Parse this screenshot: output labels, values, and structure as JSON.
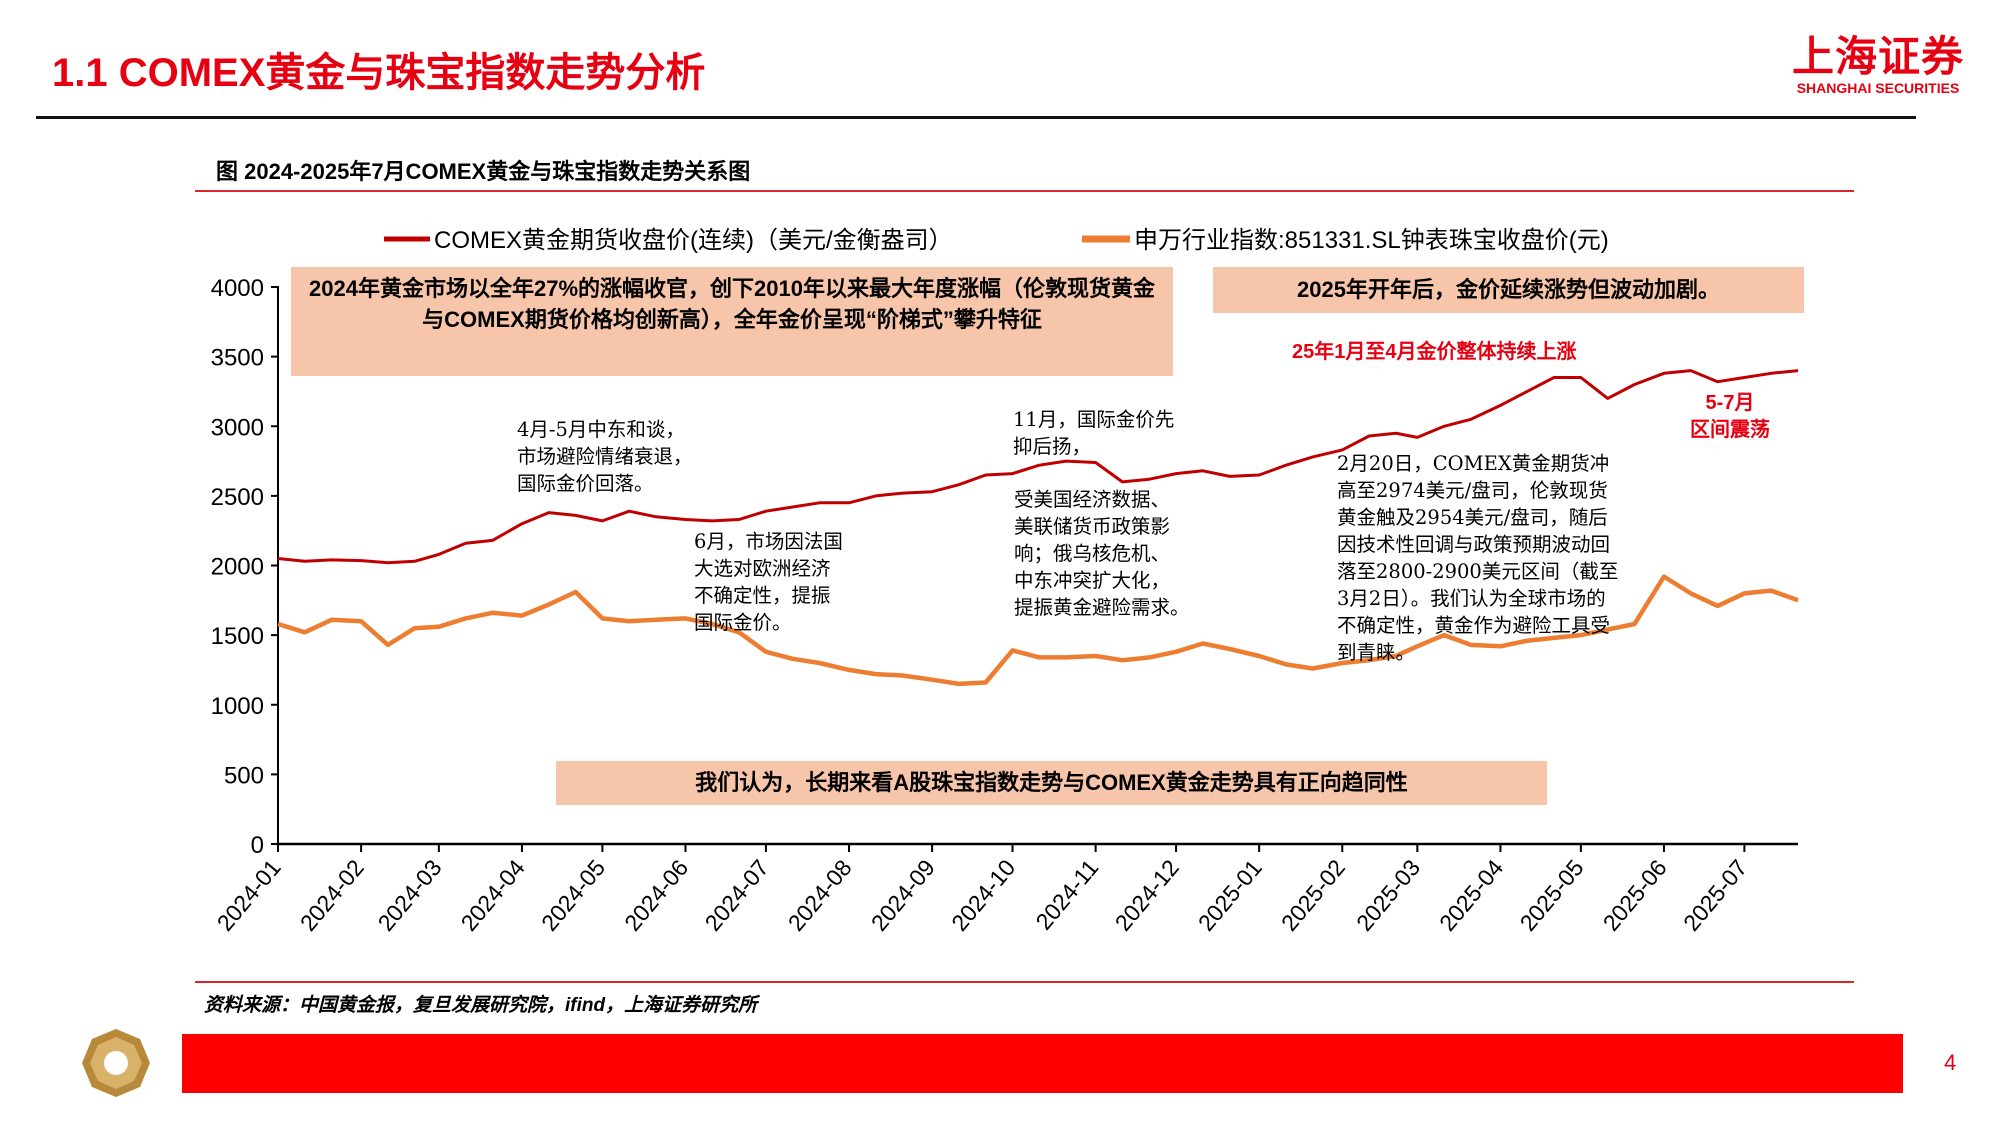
{
  "header": {
    "title": "1.1 COMEX黄金与珠宝指数走势分析",
    "logo_cn": "上海证券",
    "logo_en": "SHANGHAI SECURITIES"
  },
  "figure_title": "图 2024-2025年7月COMEX黄金与珠宝指数走势关系图",
  "source": "资料来源：中国黄金报，复旦发展研究院，ifind，上海证券研究所",
  "page_number": "4",
  "colors": {
    "accent": "#e60012",
    "gold_series": "#c00000",
    "jewelry_series": "#ed7d31",
    "box_fill": "#f6c5aa"
  },
  "annotations": {
    "box_2024": "2024年黄金市场以全年27%的涨幅收官，创下2010年以来最大年度涨幅（伦敦现货黄金与COMEX期货价格均创新高），全年金价呈现“阶梯式”攀升特征",
    "box_2025": "2025年开年后，金价延续涨势但波动加剧。",
    "box_bottom": "我们认为，长期来看A股珠宝指数走势与COMEX黄金走势具有正向趋同性",
    "note_apr_may": "4月-5月中东和谈，\n市场避险情绪衰退，\n国际金价回落。",
    "note_jun": "6月，市场因法国\n大选对欧洲经济\n不确定性，提振\n国际金价。",
    "note_nov": "11月，国际金价先\n抑后扬，",
    "note_factors": "受美国经济数据、\n美联储货币政策影\n响；俄乌核危机、\n中东冲突扩大化，\n提振黄金避险需求。",
    "note_feb": "2月20日，COMEX黄金期货冲\n高至2974美元/盘司，伦敦现货\n黄金触及2954美元/盘司，随后\n因技术性回调与政策预期波动回\n落至2800-2900美元区间（截至\n3月2日）。我们认为全球市场的\n不确定性，黄金作为避险工具受\n到青睐。",
    "red_jan_apr": "25年1月至4月金价整体持续上涨",
    "red_may_jul": "5-7月\n区间震荡"
  },
  "chart_data": {
    "type": "line",
    "title": "2024-2025年7月COMEX黄金与珠宝指数走势关系图",
    "xlabel": "",
    "ylabel": "",
    "ylim": [
      0,
      4000
    ],
    "yticks": [
      "0",
      "500",
      "1000",
      "1500",
      "2000",
      "2500",
      "3000",
      "3500",
      "4000"
    ],
    "xticks": [
      "2024-01",
      "2024-02",
      "2024-03",
      "2024-04",
      "2024-05",
      "2024-06",
      "2024-07",
      "2024-08",
      "2024-09",
      "2024-10",
      "2024-11",
      "2024-12",
      "2025-01",
      "2025-02",
      "2025-03",
      "2025-04",
      "2025-05",
      "2025-06",
      "2025-07"
    ],
    "grid": false,
    "legend_position": "top",
    "x": [
      "2024-01-01",
      "2024-01-11",
      "2024-01-21",
      "2024-02-01",
      "2024-02-11",
      "2024-02-21",
      "2024-03-01",
      "2024-03-11",
      "2024-03-21",
      "2024-04-01",
      "2024-04-11",
      "2024-04-21",
      "2024-05-01",
      "2024-05-11",
      "2024-05-21",
      "2024-06-01",
      "2024-06-11",
      "2024-06-21",
      "2024-07-01",
      "2024-07-11",
      "2024-07-21",
      "2024-08-01",
      "2024-08-11",
      "2024-08-21",
      "2024-09-01",
      "2024-09-11",
      "2024-09-21",
      "2024-10-01",
      "2024-10-11",
      "2024-10-21",
      "2024-11-01",
      "2024-11-11",
      "2024-11-21",
      "2024-12-01",
      "2024-12-11",
      "2024-12-21",
      "2025-01-01",
      "2025-01-11",
      "2025-01-21",
      "2025-02-01",
      "2025-02-11",
      "2025-02-21",
      "2025-03-01",
      "2025-03-11",
      "2025-03-21",
      "2025-04-01",
      "2025-04-11",
      "2025-04-21",
      "2025-05-01",
      "2025-05-11",
      "2025-05-21",
      "2025-06-01",
      "2025-06-11",
      "2025-06-21",
      "2025-07-01",
      "2025-07-11",
      "2025-07-21"
    ],
    "series": [
      {
        "name": "COMEX黄金期货收盘价(连续)（美元/金衡盎司）",
        "color": "#c00000",
        "values": [
          2050,
          2030,
          2040,
          2035,
          2020,
          2030,
          2080,
          2160,
          2180,
          2300,
          2380,
          2360,
          2320,
          2390,
          2350,
          2330,
          2320,
          2330,
          2390,
          2420,
          2450,
          2450,
          2500,
          2520,
          2530,
          2580,
          2650,
          2660,
          2720,
          2750,
          2740,
          2600,
          2620,
          2660,
          2680,
          2640,
          2650,
          2720,
          2780,
          2830,
          2930,
          2950,
          2920,
          3000,
          3050,
          3150,
          3250,
          3350,
          3350,
          3200,
          3300,
          3380,
          3400,
          3320,
          3350,
          3380,
          3400
        ]
      },
      {
        "name": "申万行业指数:851331.SL钟表珠宝收盘价(元)",
        "color": "#ed7d31",
        "values": [
          1580,
          1520,
          1610,
          1600,
          1430,
          1550,
          1560,
          1620,
          1660,
          1640,
          1720,
          1810,
          1620,
          1600,
          1610,
          1620,
          1580,
          1520,
          1380,
          1330,
          1300,
          1250,
          1220,
          1210,
          1180,
          1150,
          1160,
          1390,
          1340,
          1340,
          1350,
          1320,
          1340,
          1380,
          1440,
          1400,
          1350,
          1290,
          1260,
          1300,
          1320,
          1350,
          1420,
          1500,
          1430,
          1420,
          1460,
          1480,
          1500,
          1540,
          1580,
          1920,
          1800,
          1710,
          1800,
          1820,
          1750
        ]
      }
    ]
  }
}
